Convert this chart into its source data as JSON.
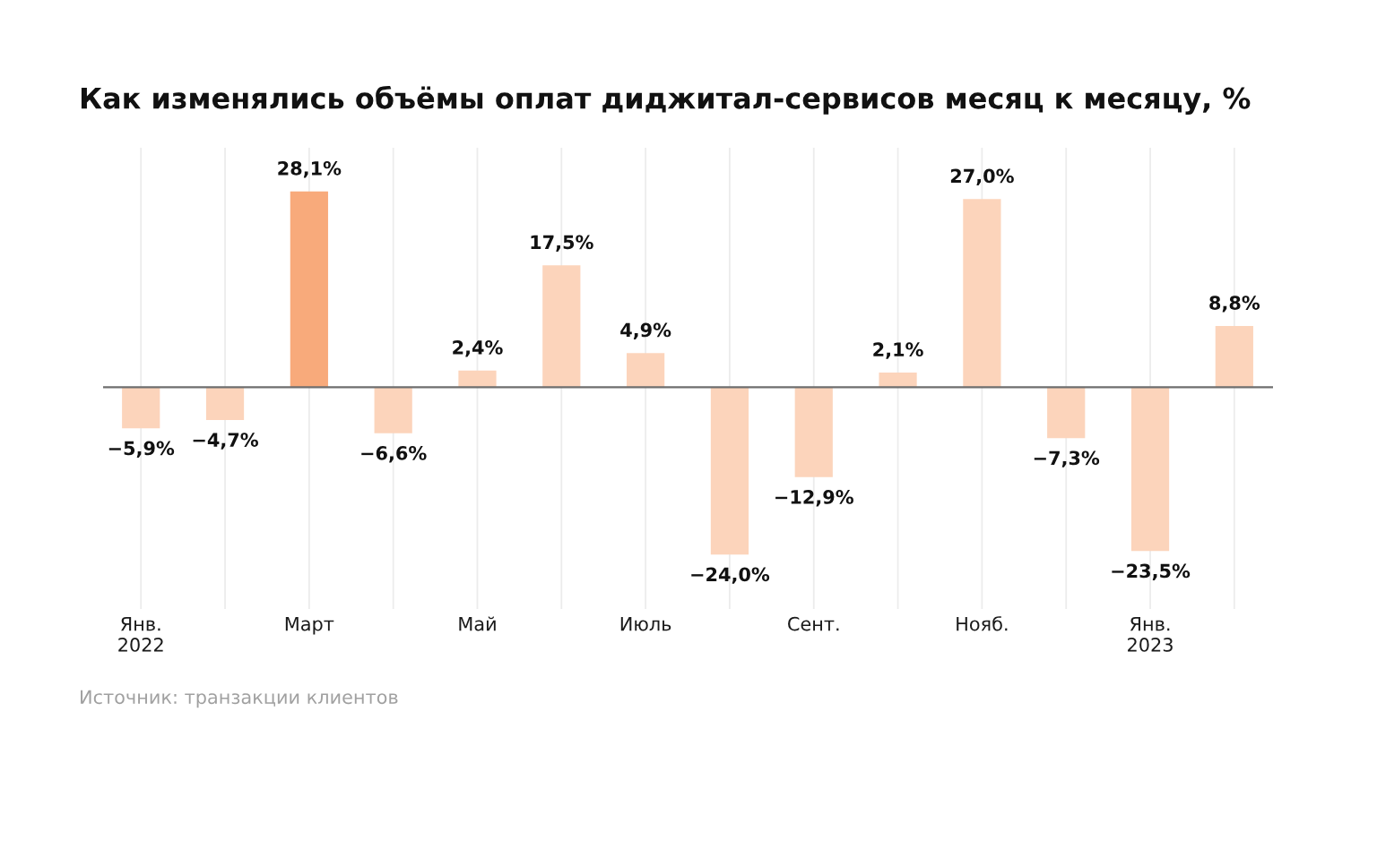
{
  "chart_data": {
    "type": "bar",
    "title": "Как изменялись объёмы оплат диджитал-сервисов месяц к месяцу, %",
    "categories": [
      "Янв.\n2022",
      null,
      "Март",
      null,
      "Май",
      null,
      "Июль",
      null,
      "Сент.",
      null,
      "Нояб.",
      null,
      "Янв.\n2023",
      null
    ],
    "values": [
      -5.9,
      -4.7,
      28.1,
      -6.6,
      2.4,
      17.5,
      4.9,
      -24.0,
      -12.9,
      2.1,
      27.0,
      -7.3,
      -23.5,
      8.8
    ],
    "colors": [
      "#fcd4bb",
      "#fcd4bb",
      "#f8aa7b",
      "#fcd4bb",
      "#fcd4bb",
      "#fcd4bb",
      "#fcd4bb",
      "#fcd4bb",
      "#fcd4bb",
      "#fcd4bb",
      "#fcd4bb",
      "#fcd4bb",
      "#fcd4bb",
      "#fcd4bb"
    ],
    "value_labels": [
      "−5,9%",
      "−4,7%",
      "28,1%",
      "−6,6%",
      "2,4%",
      "17,5%",
      "4,9%",
      "−24,0%",
      "−12,9%",
      "2,1%",
      "27,0%",
      "−7,3%",
      "−23,5%",
      "8,8%"
    ],
    "grid": "x",
    "legend": false,
    "tick_labels": "x",
    "annotations": [
      "Источник: транзакции клиентов"
    ]
  }
}
